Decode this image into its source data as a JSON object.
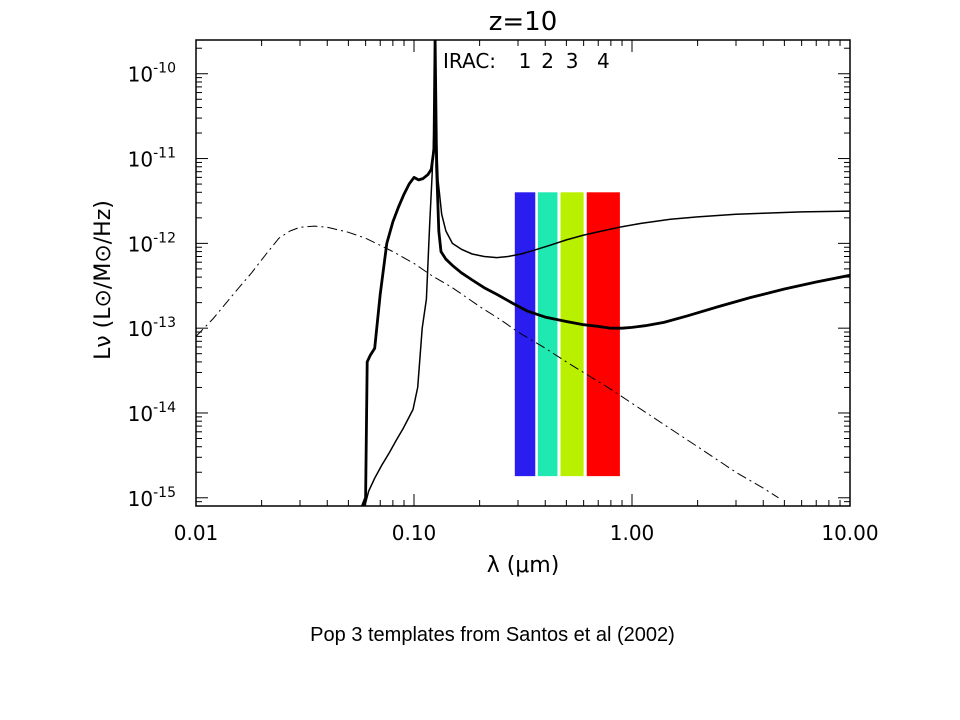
{
  "chart_data": {
    "type": "line",
    "title": "z=10",
    "xlabel": "λ (μm)",
    "ylabel": "Lν (L⊙/M⊙/Hz)",
    "x_scale": "log",
    "y_scale": "log",
    "xlim": [
      0.01,
      10.0
    ],
    "ylim": [
      8e-16,
      2.5e-10
    ],
    "x_ticks": [
      {
        "value": 0.01,
        "label": "0.01"
      },
      {
        "value": 0.1,
        "label": "0.10"
      },
      {
        "value": 1.0,
        "label": "1.00"
      },
      {
        "value": 10.0,
        "label": "10.00"
      }
    ],
    "y_ticks": [
      {
        "value": 1e-10,
        "mantissa": "10",
        "exponent": "-10"
      },
      {
        "value": 1e-11,
        "mantissa": "10",
        "exponent": "-11"
      },
      {
        "value": 1e-12,
        "mantissa": "10",
        "exponent": "-12"
      },
      {
        "value": 1e-13,
        "mantissa": "10",
        "exponent": "-13"
      },
      {
        "value": 1e-14,
        "mantissa": "10",
        "exponent": "-14"
      },
      {
        "value": 1e-15,
        "mantissa": "10",
        "exponent": "-15"
      }
    ],
    "grid": false,
    "legend": "none",
    "irac": {
      "label": "IRAC:",
      "y_range": [
        1.8e-15,
        4e-12
      ],
      "bands": [
        {
          "label": "1",
          "x_range": [
            0.29,
            0.36
          ],
          "color": "#2a1df0"
        },
        {
          "label": "2",
          "x_range": [
            0.37,
            0.455
          ],
          "color": "#1fe8b0"
        },
        {
          "label": "3",
          "x_range": [
            0.47,
            0.6
          ],
          "color": "#b8f000"
        },
        {
          "label": "4",
          "x_range": [
            0.62,
            0.88
          ],
          "color": "#ff0000"
        }
      ]
    },
    "series": [
      {
        "style": "solid-thin",
        "x": [
          0.0595,
          0.062,
          0.066,
          0.071,
          0.077,
          0.083,
          0.089,
          0.094,
          0.099,
          0.104,
          0.109,
          0.114,
          0.118,
          0.121,
          0.1235,
          0.125,
          0.1265,
          0.129,
          0.134,
          0.14,
          0.15,
          0.165,
          0.185,
          0.21,
          0.24,
          0.27,
          0.31,
          0.35,
          0.42,
          0.5,
          0.6,
          0.75,
          0.9,
          1.1,
          1.5,
          2.0,
          3.0,
          4.0,
          6.0,
          10.0
        ],
        "y": [
          8e-16,
          1.2e-15,
          1.7e-15,
          2.4e-15,
          3.4e-15,
          4.8e-15,
          6.5e-15,
          8.5e-15,
          1.1e-14,
          2e-14,
          1e-13,
          2.2e-13,
          1.7e-12,
          6e-12,
          2.2e-11,
          1.5e-10,
          2e-11,
          5.5e-12,
          2.2e-12,
          1.4e-12,
          1e-12,
          8.5e-13,
          7.5e-13,
          7e-13,
          6.8e-13,
          7e-13,
          7.5e-13,
          8.2e-13,
          9.5e-13,
          1.1e-12,
          1.25e-12,
          1.42e-12,
          1.57e-12,
          1.72e-12,
          1.92e-12,
          2.05e-12,
          2.2e-12,
          2.27e-12,
          2.35e-12,
          2.4e-12
        ]
      },
      {
        "style": "solid-thick",
        "x": [
          0.058,
          0.06,
          0.061,
          0.063,
          0.066,
          0.07,
          0.075,
          0.08,
          0.085,
          0.09,
          0.095,
          0.1,
          0.105,
          0.11,
          0.116,
          0.12,
          0.1235,
          0.125,
          0.127,
          0.13,
          0.133,
          0.14,
          0.15,
          0.165,
          0.185,
          0.21,
          0.24,
          0.28,
          0.33,
          0.4,
          0.5,
          0.6,
          0.7,
          0.8,
          0.9,
          1.0,
          1.15,
          1.4,
          1.8,
          2.5,
          3.5,
          5.0,
          7.0,
          10.0
        ],
        "y": [
          8e-16,
          1e-15,
          4e-14,
          4.8e-14,
          5.8e-14,
          2.5e-13,
          1e-12,
          1.8e-12,
          2.7e-12,
          3.8e-12,
          5e-12,
          6e-12,
          5.6e-12,
          5.8e-12,
          6.5e-12,
          7.5e-12,
          1.3e-11,
          2.6e-10,
          8e-12,
          1.4e-12,
          8e-13,
          6.5e-13,
          5.5e-13,
          4.5e-13,
          3.7e-13,
          3e-13,
          2.5e-13,
          2e-13,
          1.6e-13,
          1.35e-13,
          1.2e-13,
          1.1e-13,
          1.05e-13,
          1e-13,
          1e-13,
          1.02e-13,
          1.07e-13,
          1.17e-13,
          1.4e-13,
          1.8e-13,
          2.3e-13,
          2.9e-13,
          3.5e-13,
          4.2e-13
        ]
      },
      {
        "style": "dash-dot",
        "x": [
          0.01,
          0.012,
          0.015,
          0.018,
          0.021,
          0.024,
          0.027,
          0.03,
          0.035,
          0.04,
          0.05,
          0.06,
          0.07,
          0.08,
          0.1,
          0.12,
          0.15,
          0.2,
          0.25,
          0.3,
          0.4,
          0.5,
          0.6,
          0.8,
          1.0,
          1.5,
          2.0,
          3.0,
          4.0,
          4.7
        ],
        "y": [
          8e-14,
          1.3e-13,
          2.6e-13,
          4.5e-13,
          7.5e-13,
          1.15e-12,
          1.4e-12,
          1.55e-12,
          1.6e-12,
          1.55e-12,
          1.35e-12,
          1.15e-12,
          9.5e-13,
          8e-13,
          5.8e-13,
          4.2e-13,
          3e-13,
          1.8e-13,
          1.25e-13,
          9e-14,
          5.8e-14,
          4e-14,
          3e-14,
          1.9e-14,
          1.3e-14,
          6.5e-15,
          4e-15,
          2e-15,
          1.3e-15,
          1e-15
        ]
      }
    ]
  },
  "caption": "Pop 3 templates from Santos et al (2002)"
}
